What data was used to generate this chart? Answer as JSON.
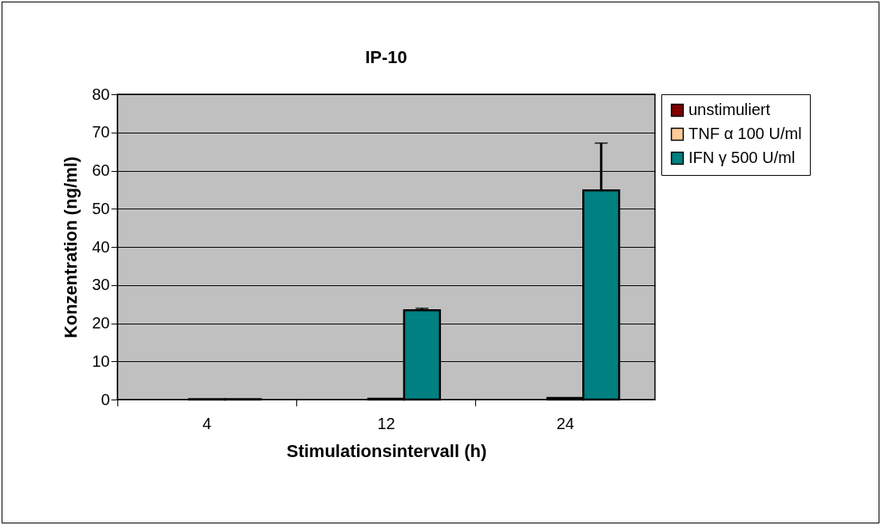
{
  "chart_data": {
    "type": "bar",
    "title": "IP-10",
    "xlabel": "Stimulationsintervall (h)",
    "ylabel": "Konzentration (ng/ml)",
    "categories": [
      "4",
      "12",
      "24"
    ],
    "series": [
      {
        "name": "unstimuliert",
        "color": "#800000",
        "values": [
          0,
          0,
          0
        ]
      },
      {
        "name": "TNF α 100 U/ml",
        "color": "#ffcc99",
        "values": [
          0.1,
          0.2,
          0.4
        ]
      },
      {
        "name": "IFN γ 500 U/ml",
        "color": "#008080",
        "values": [
          0.1,
          23.4,
          54.8
        ],
        "errors": [
          null,
          [
            23.4,
            23.9
          ],
          [
            54.8,
            67.2
          ]
        ]
      }
    ],
    "ylim": [
      0,
      80
    ],
    "yticks": [
      0,
      10,
      20,
      30,
      40,
      50,
      60,
      70,
      80
    ],
    "grid": "y",
    "legend": "right"
  }
}
